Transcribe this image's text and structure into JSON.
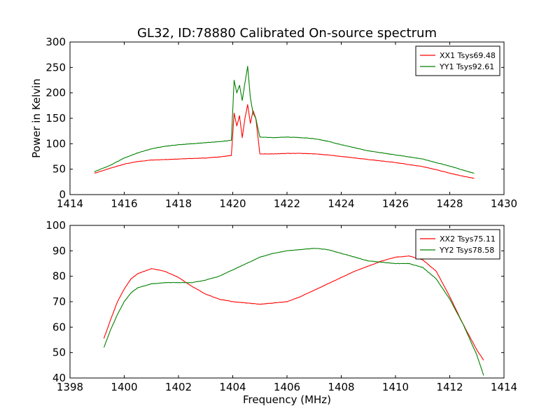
{
  "figure": {
    "title": "GL32, ID:78880 Calibrated On-source spectrum",
    "background": "#ffffff"
  },
  "chart_data": [
    {
      "type": "line",
      "ylabel": "Power in Kelvin",
      "xlabel": "",
      "xlim": [
        1414,
        1430
      ],
      "ylim": [
        0,
        300
      ],
      "xticks": [
        "1414",
        "1416",
        "1418",
        "1420",
        "1422",
        "1424",
        "1426",
        "1428",
        "1430"
      ],
      "yticks": [
        "0",
        "50",
        "100",
        "150",
        "200",
        "250",
        "300"
      ],
      "grid": false,
      "legend_position": "top-right",
      "series": [
        {
          "name": "XX1 Tsys69.48",
          "color": "#ff0000",
          "x": [
            1414.9,
            1415.5,
            1416,
            1416.5,
            1417,
            1417.5,
            1418,
            1418.5,
            1419,
            1419.5,
            1419.95,
            1420.05,
            1420.15,
            1420.25,
            1420.35,
            1420.45,
            1420.55,
            1420.65,
            1420.75,
            1420.85,
            1421,
            1421.5,
            1422,
            1422.5,
            1423,
            1423.5,
            1424,
            1424.5,
            1425,
            1425.5,
            1426,
            1426.5,
            1427,
            1427.5,
            1428,
            1428.5,
            1428.9
          ],
          "y": [
            42,
            52,
            60,
            65,
            68,
            69,
            70,
            71,
            72,
            74,
            77,
            160,
            135,
            155,
            112,
            150,
            177,
            140,
            165,
            150,
            80,
            80,
            81,
            81,
            80,
            78,
            75,
            72,
            69,
            66,
            63,
            59,
            55,
            49,
            42,
            36,
            32
          ]
        },
        {
          "name": "YY1 Tsys92.61",
          "color": "#008000",
          "x": [
            1414.9,
            1415.5,
            1416,
            1416.5,
            1417,
            1417.5,
            1418,
            1418.5,
            1419,
            1419.5,
            1419.95,
            1420.05,
            1420.15,
            1420.25,
            1420.35,
            1420.45,
            1420.55,
            1420.65,
            1420.75,
            1420.85,
            1421,
            1421.5,
            1422,
            1422.5,
            1423,
            1423.5,
            1424,
            1424.5,
            1425,
            1425.5,
            1426,
            1426.5,
            1427,
            1427.5,
            1428,
            1428.5,
            1428.9
          ],
          "y": [
            45,
            58,
            72,
            82,
            90,
            95,
            98,
            100,
            102,
            104,
            107,
            225,
            200,
            215,
            185,
            220,
            252,
            190,
            160,
            150,
            113,
            112,
            113,
            112,
            110,
            105,
            98,
            92,
            86,
            82,
            78,
            74,
            70,
            63,
            56,
            48,
            42
          ]
        }
      ]
    },
    {
      "type": "line",
      "ylabel": "",
      "xlabel": "Frequency (MHz)",
      "xlim": [
        1398,
        1414
      ],
      "ylim": [
        40,
        100
      ],
      "xticks": [
        "1398",
        "1400",
        "1402",
        "1404",
        "1406",
        "1408",
        "1410",
        "1412",
        "1414"
      ],
      "yticks": [
        "40",
        "50",
        "60",
        "70",
        "80",
        "90",
        "100"
      ],
      "grid": false,
      "legend_position": "top-right",
      "series": [
        {
          "name": "XX2 Tsys75.11",
          "color": "#ff0000",
          "x": [
            1399.25,
            1399.5,
            1399.75,
            1400,
            1400.25,
            1400.5,
            1401,
            1401.5,
            1402,
            1402.5,
            1403,
            1403.5,
            1404,
            1404.5,
            1405,
            1405.5,
            1406,
            1406.5,
            1407,
            1407.5,
            1408,
            1408.5,
            1409,
            1409.5,
            1410,
            1410.5,
            1411,
            1411.5,
            1412,
            1412.5,
            1413,
            1413.25
          ],
          "y": [
            55.5,
            63,
            70,
            75,
            79,
            81,
            83,
            82,
            79.5,
            76,
            73,
            71,
            70,
            69.5,
            69,
            69.5,
            70,
            72,
            74.5,
            77,
            79.5,
            82,
            84,
            86,
            87.5,
            88,
            86.5,
            82,
            72,
            61,
            51,
            47
          ]
        },
        {
          "name": "YY2 Tsys78.58",
          "color": "#008000",
          "x": [
            1399.25,
            1399.5,
            1399.75,
            1400,
            1400.25,
            1400.5,
            1401,
            1401.5,
            1402,
            1402.5,
            1403,
            1403.5,
            1404,
            1404.5,
            1405,
            1405.5,
            1406,
            1406.5,
            1407,
            1407.5,
            1408,
            1408.5,
            1409,
            1409.5,
            1410,
            1410.5,
            1411,
            1411.5,
            1412,
            1412.5,
            1413,
            1413.25
          ],
          "y": [
            52,
            59,
            65,
            70,
            73.5,
            75.5,
            77,
            77.5,
            77.5,
            77.5,
            78.5,
            80,
            82.5,
            85,
            87.5,
            89,
            90,
            90.5,
            91,
            90.5,
            89,
            87.5,
            86,
            85.5,
            85,
            85,
            83.5,
            79,
            71,
            61,
            49,
            41
          ]
        }
      ]
    }
  ]
}
